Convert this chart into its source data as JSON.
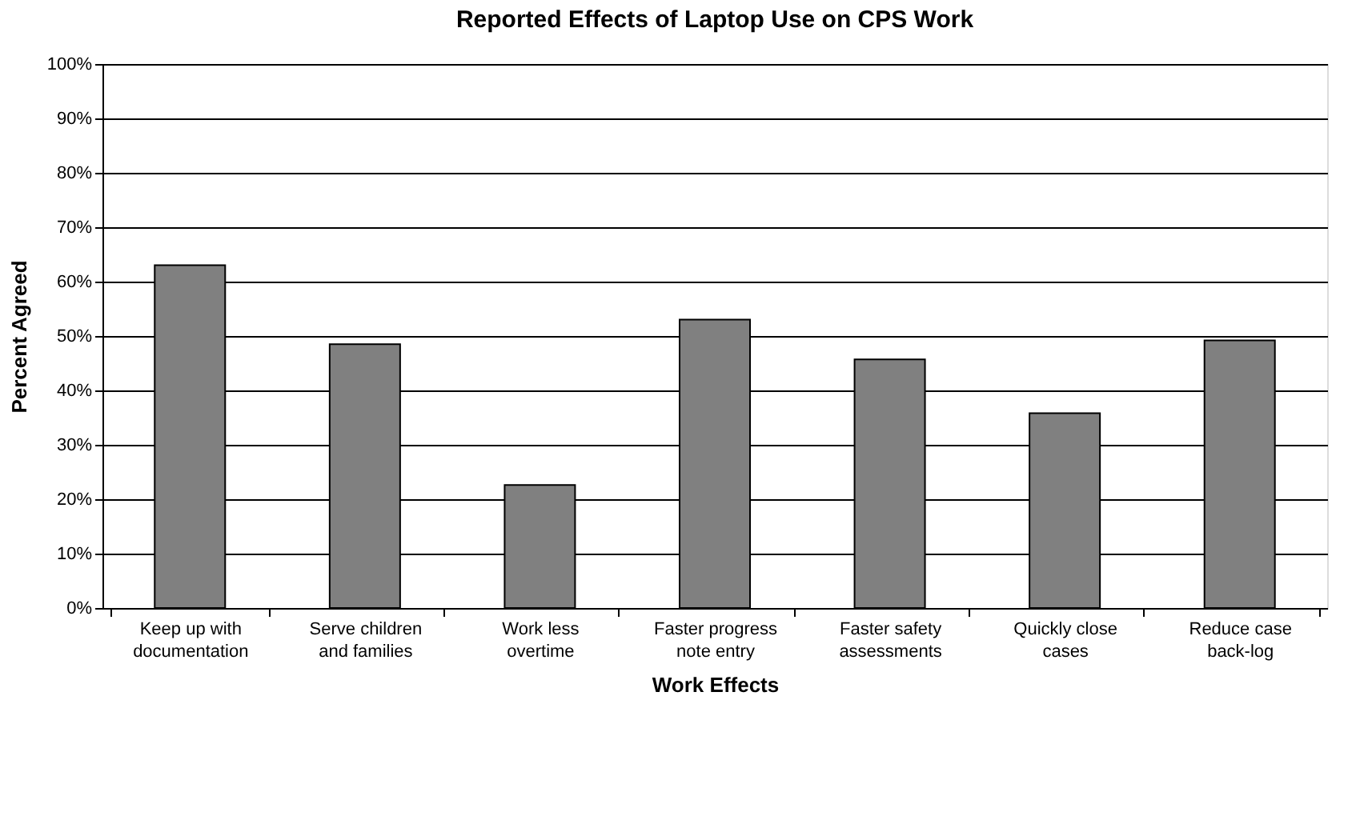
{
  "chart_data": {
    "type": "bar",
    "title": "Reported Effects of Laptop Use on CPS Work",
    "xlabel": "Work Effects",
    "ylabel": "Percent Agreed",
    "categories": [
      "Keep up with documentation",
      "Serve children and families",
      "Work less overtime",
      "Faster progress note entry",
      "Faster safety assessments",
      "Quickly close cases",
      "Reduce case back-log"
    ],
    "values": [
      63,
      48.5,
      22.6,
      53,
      45.7,
      35.8,
      49.2
    ],
    "color": "#808080",
    "ylim": [
      0,
      100
    ],
    "yticks": [
      {
        "value": 0,
        "label": "0%"
      },
      {
        "value": 10,
        "label": "10%"
      },
      {
        "value": 20,
        "label": "20%"
      },
      {
        "value": 30,
        "label": "30%"
      },
      {
        "value": 40,
        "label": "40%"
      },
      {
        "value": 50,
        "label": "50%"
      },
      {
        "value": 60,
        "label": "60%"
      },
      {
        "value": 70,
        "label": "70%"
      },
      {
        "value": 80,
        "label": "80%"
      },
      {
        "value": 90,
        "label": "90%"
      },
      {
        "value": 100,
        "label": "100%"
      }
    ],
    "grid": "y"
  }
}
